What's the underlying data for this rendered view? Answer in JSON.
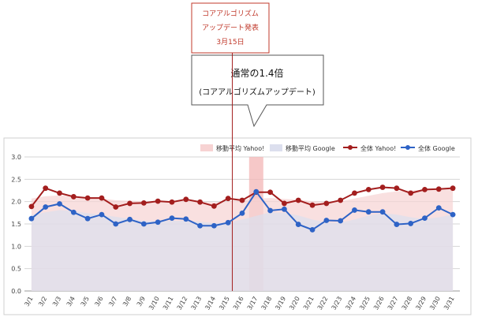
{
  "chart_data": {
    "type": "line",
    "title": "",
    "xlabel": "",
    "ylabel": "",
    "ylim": [
      0,
      3.0
    ],
    "yticks": [
      "0.0",
      "0.5",
      "1.0",
      "1.5",
      "2.0",
      "2.5",
      "3.0"
    ],
    "grid": true,
    "legend_position": "top-right",
    "categories": [
      "3/1",
      "3/2",
      "3/3",
      "3/4",
      "3/5",
      "3/6",
      "3/7",
      "3/8",
      "3/9",
      "3/10",
      "3/11",
      "3/12",
      "3/13",
      "3/14",
      "3/15",
      "3/16",
      "3/17",
      "3/18",
      "3/19",
      "3/20",
      "3/21",
      "3/22",
      "3/23",
      "3/24",
      "3/25",
      "3/26",
      "3/27",
      "3/28",
      "3/29",
      "3/30",
      "3/31"
    ],
    "series": [
      {
        "name": "移動平均 Yahoo!",
        "kind": "area",
        "color": "#f7d3d3",
        "values": [
          2.07,
          2.12,
          2.14,
          2.12,
          2.09,
          2.07,
          2.03,
          2.02,
          2.01,
          2.0,
          2.01,
          2.01,
          2.0,
          1.98,
          2.0,
          2.04,
          2.07,
          2.08,
          2.06,
          2.04,
          2.01,
          1.99,
          2.01,
          2.07,
          2.13,
          2.19,
          2.23,
          2.25,
          2.26,
          2.27,
          2.28
        ]
      },
      {
        "name": "移動平均 Google",
        "kind": "area",
        "color": "#dcdfee",
        "values": [
          1.7,
          1.76,
          1.81,
          1.79,
          1.74,
          1.7,
          1.66,
          1.61,
          1.57,
          1.56,
          1.57,
          1.57,
          1.55,
          1.52,
          1.53,
          1.6,
          1.68,
          1.76,
          1.75,
          1.69,
          1.6,
          1.53,
          1.53,
          1.6,
          1.69,
          1.74,
          1.71,
          1.65,
          1.61,
          1.65,
          1.71
        ]
      },
      {
        "name": "全体 Yahoo!",
        "kind": "line",
        "color": "#a31e1e",
        "values": [
          1.89,
          2.3,
          2.19,
          2.11,
          2.08,
          2.08,
          1.88,
          1.96,
          1.97,
          2.01,
          1.99,
          2.05,
          1.99,
          1.9,
          2.07,
          2.03,
          2.21,
          2.21,
          1.96,
          2.03,
          1.92,
          1.96,
          2.03,
          2.19,
          2.27,
          2.32,
          2.3,
          2.19,
          2.27,
          2.28,
          2.3
        ]
      },
      {
        "name": "全体 Google",
        "kind": "line",
        "color": "#2e63c6",
        "values": [
          1.62,
          1.88,
          1.95,
          1.76,
          1.62,
          1.71,
          1.5,
          1.6,
          1.5,
          1.54,
          1.63,
          1.61,
          1.46,
          1.46,
          1.53,
          1.74,
          2.22,
          1.8,
          1.83,
          1.49,
          1.37,
          1.58,
          1.57,
          1.81,
          1.77,
          1.77,
          1.49,
          1.51,
          1.63,
          1.86,
          1.71
        ]
      }
    ],
    "highlight_category": "3/17",
    "event_line_category": "3/15",
    "annotations": {
      "event_lines": [
        "コアアルゴリズム",
        "アップデート発表",
        "3月15日"
      ],
      "callout_main": "通常の1.4倍",
      "callout_sub": "(コアアルゴリズムアップデート)"
    }
  }
}
